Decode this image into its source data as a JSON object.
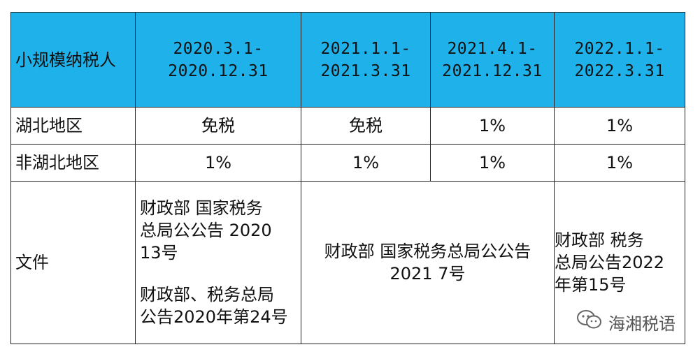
{
  "table": {
    "header": {
      "corner": "小规模纳税人",
      "periods": [
        {
          "line1": "2020.3.1-",
          "line2": "2020.12.31"
        },
        {
          "line1": "2021.1.1-",
          "line2": "2021.3.31"
        },
        {
          "line1": "2021.4.1-",
          "line2": "2021.12.31"
        },
        {
          "line1": "2022.1.1-",
          "line2": "2022.3.31"
        }
      ]
    },
    "rows": [
      {
        "label": "湖北地区",
        "values": [
          "免税",
          "免税",
          "1%",
          "1%"
        ]
      },
      {
        "label": "非湖北地区",
        "values": [
          "1%",
          "1%",
          "1%",
          "1%"
        ]
      }
    ],
    "documents": {
      "label": "文件",
      "col1": {
        "lines_a": [
          "财政部 国家税务",
          "总局公公告 2020",
          "13号"
        ],
        "lines_b": [
          "财政部、税务总局",
          "公告2020年第24号"
        ]
      },
      "col2_3": {
        "lines": [
          "财政部 国家税务总局公公告",
          "2021 7号"
        ]
      },
      "col4": {
        "lines": [
          "财政部 税务",
          "总局公告2022",
          "年第15号"
        ]
      }
    }
  },
  "watermark": {
    "text": "海湘税语",
    "icon": "wechat-icon"
  }
}
